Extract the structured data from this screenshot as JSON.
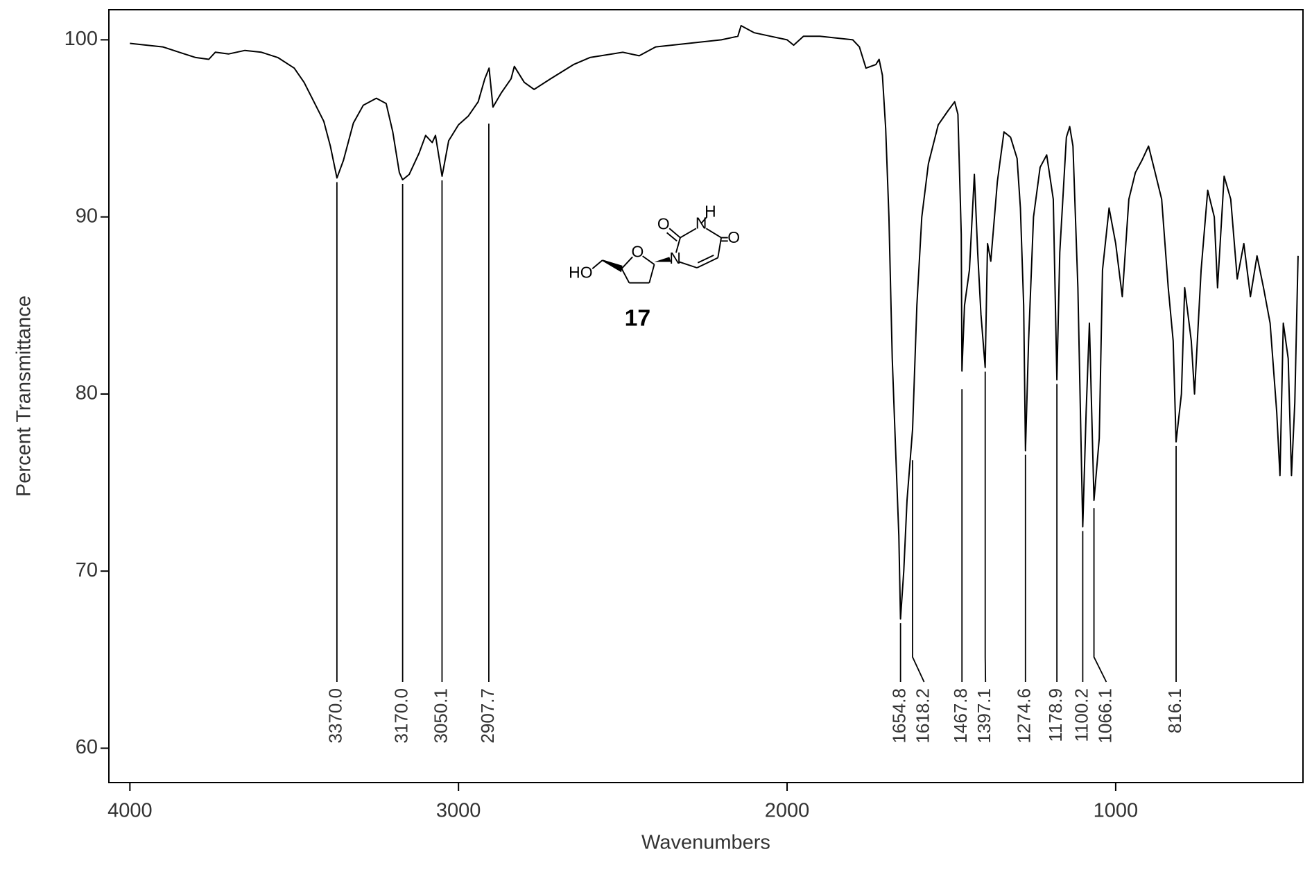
{
  "chart_data": {
    "type": "line",
    "x_label": "Wavenumbers",
    "y_label": "Percent Transmittance",
    "xlim": [
      4064,
      430
    ],
    "ylim": [
      58.06,
      101.7
    ],
    "xticks": [
      4000,
      3000,
      2000,
      1000
    ],
    "yticks": [
      60,
      70,
      80,
      90,
      100
    ],
    "color": "#000000",
    "x": [
      4000,
      3900,
      3850,
      3800,
      3760,
      3740,
      3700,
      3650,
      3600,
      3550,
      3500,
      3470,
      3440,
      3410,
      3390,
      3370,
      3350,
      3320,
      3290,
      3250,
      3220,
      3200,
      3180,
      3170,
      3150,
      3120,
      3100,
      3080,
      3070,
      3050,
      3030,
      3000,
      2970,
      2940,
      2920,
      2907,
      2895,
      2870,
      2840,
      2830,
      2800,
      2770,
      2720,
      2650,
      2600,
      2500,
      2450,
      2400,
      2300,
      2200,
      2150,
      2140,
      2100,
      2050,
      2000,
      1980,
      1950,
      1900,
      1800,
      1780,
      1760,
      1730,
      1720,
      1710,
      1700,
      1690,
      1680,
      1670,
      1660,
      1654.8,
      1645,
      1635,
      1618.2,
      1605,
      1590,
      1570,
      1540,
      1510,
      1490,
      1480,
      1470,
      1467.8,
      1460,
      1445,
      1430,
      1420,
      1410,
      1397.1,
      1390,
      1380,
      1360,
      1340,
      1320,
      1300,
      1290,
      1280,
      1274.6,
      1265,
      1250,
      1230,
      1210,
      1190,
      1178.9,
      1170,
      1150,
      1140,
      1130,
      1115,
      1100.2,
      1090,
      1080,
      1066.1,
      1050,
      1040,
      1020,
      1000,
      980,
      960,
      940,
      920,
      900,
      880,
      860,
      840,
      825,
      816.1,
      800,
      790,
      770,
      760,
      740,
      720,
      700,
      690,
      670,
      650,
      630,
      610,
      590,
      570,
      550,
      530,
      510,
      500,
      490,
      475,
      465,
      455,
      445
    ],
    "values": [
      99.8,
      99.6,
      99.3,
      99.0,
      98.9,
      99.3,
      99.2,
      99.4,
      99.3,
      99.0,
      98.4,
      97.6,
      96.5,
      95.4,
      94.0,
      92.2,
      93.2,
      95.3,
      96.3,
      96.7,
      96.4,
      94.8,
      92.5,
      92.1,
      92.4,
      93.6,
      94.6,
      94.2,
      94.6,
      92.3,
      94.3,
      95.2,
      95.7,
      96.5,
      97.8,
      98.4,
      96.2,
      97.0,
      97.8,
      98.5,
      97.6,
      97.2,
      97.8,
      98.6,
      99.0,
      99.3,
      99.1,
      99.6,
      99.8,
      100.0,
      100.2,
      100.8,
      100.4,
      100.2,
      100.0,
      99.7,
      100.2,
      100.2,
      100.0,
      99.6,
      98.4,
      98.6,
      98.9,
      98.0,
      95.0,
      90.0,
      82.0,
      77.0,
      72.0,
      67.3,
      70,
      74,
      78,
      85,
      90,
      93,
      95.2,
      96.0,
      96.5,
      95.8,
      89,
      81.3,
      85,
      87,
      92.4,
      88.0,
      84.5,
      81.5,
      88.5,
      87.5,
      92.0,
      94.8,
      94.5,
      93.3,
      90.5,
      85,
      76.8,
      83,
      90,
      92.8,
      93.5,
      91.0,
      80.8,
      88,
      94.5,
      95.1,
      94.0,
      86,
      72.5,
      79,
      84.0,
      74,
      77.5,
      87,
      90.5,
      88.5,
      85.5,
      91,
      92.5,
      93.2,
      94.0,
      92.5,
      91,
      86,
      83,
      77.3,
      80,
      86,
      83,
      80,
      87,
      91.5,
      90,
      86,
      92.3,
      91.0,
      86.5,
      88.5,
      85.5,
      87.8,
      86.0,
      84.0,
      79.0,
      75.4,
      84,
      82,
      75.4,
      79.5,
      87.8
    ],
    "peaks": {
      "x": [
        3370.0,
        3170.0,
        3050.1,
        2907.7,
        1654.8,
        1618.2,
        1467.8,
        1397.1,
        1274.6,
        1178.9,
        1100.2,
        1066.1,
        816.1
      ],
      "x_labels": [
        "3370.0",
        "3170.0",
        "3050.1",
        "2907.7",
        "1654.8",
        "1618.2",
        "1467.8",
        "1397.1",
        "1274.6",
        "1178.9",
        "1100.2",
        "1066.1",
        "816.1"
      ],
      "values": [
        92.2,
        92.1,
        92.3,
        95.5,
        67.3,
        76.5,
        80.5,
        81.5,
        76.8,
        80.8,
        72.5,
        73.8,
        77.3
      ]
    }
  },
  "structure": {
    "atoms": [
      "HO",
      "O",
      "N",
      "O",
      "N",
      "H",
      "O"
    ],
    "label": "17"
  }
}
